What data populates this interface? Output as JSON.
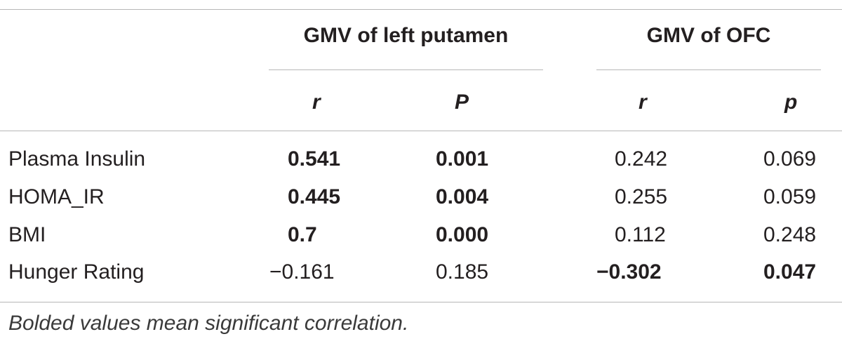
{
  "table": {
    "group_headers": [
      "GMV of left putamen",
      "GMV of OFC"
    ],
    "sub_headers": [
      "r",
      "P",
      "r",
      "p"
    ],
    "rows": [
      {
        "label": "Plasma Insulin",
        "values": [
          "0.541",
          "0.001",
          "0.242",
          "0.069"
        ],
        "bold": [
          true,
          true,
          false,
          false
        ]
      },
      {
        "label": "HOMA_IR",
        "values": [
          "0.445",
          "0.004",
          "0.255",
          "0.059"
        ],
        "bold": [
          true,
          true,
          false,
          false
        ]
      },
      {
        "label": "BMI",
        "values": [
          "0.7",
          "0.000",
          "0.112",
          "0.248"
        ],
        "bold": [
          true,
          true,
          false,
          false
        ]
      },
      {
        "label": "Hunger Rating",
        "values": [
          "−0.161",
          "0.185",
          "−0.302",
          "0.047"
        ],
        "bold": [
          false,
          false,
          true,
          true
        ]
      }
    ],
    "footnote": "Bolded values mean significant correlation."
  }
}
